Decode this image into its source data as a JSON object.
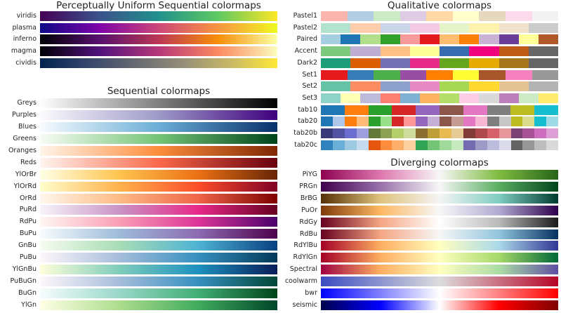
{
  "chart_data": [
    {
      "type": "heatmap",
      "title": "Perceptually Uniform Sequential colormaps",
      "kind": "continuous",
      "colormaps": [
        {
          "name": "viridis",
          "colors": [
            "#440154",
            "#3b528b",
            "#21918c",
            "#5ec962",
            "#fde725"
          ]
        },
        {
          "name": "plasma",
          "colors": [
            "#0d0887",
            "#7e03a8",
            "#cc4778",
            "#f89540",
            "#f0f921"
          ]
        },
        {
          "name": "inferno",
          "colors": [
            "#000004",
            "#57106e",
            "#bc3754",
            "#f98e09",
            "#fcffa4"
          ]
        },
        {
          "name": "magma",
          "colors": [
            "#000004",
            "#51127c",
            "#b73779",
            "#fc8961",
            "#fcfdbf"
          ]
        },
        {
          "name": "cividis",
          "colors": [
            "#00224e",
            "#35456c",
            "#666970",
            "#948e77",
            "#c8b866",
            "#fee838"
          ]
        }
      ]
    },
    {
      "type": "heatmap",
      "title": "Sequential colormaps",
      "kind": "continuous",
      "colormaps": [
        {
          "name": "Greys",
          "colors": [
            "#ffffff",
            "#000000"
          ]
        },
        {
          "name": "Purples",
          "colors": [
            "#fcfbfd",
            "#9e9ac8",
            "#3f007d"
          ]
        },
        {
          "name": "Blues",
          "colors": [
            "#f7fbff",
            "#6baed6",
            "#08306b"
          ]
        },
        {
          "name": "Greens",
          "colors": [
            "#f7fcf5",
            "#74c476",
            "#00441b"
          ]
        },
        {
          "name": "Oranges",
          "colors": [
            "#fff5eb",
            "#fd8d3c",
            "#7f2704"
          ]
        },
        {
          "name": "Reds",
          "colors": [
            "#fff5f0",
            "#fb6a4a",
            "#67000d"
          ]
        },
        {
          "name": "YlOrBr",
          "colors": [
            "#ffffe5",
            "#fec44f",
            "#ec7014",
            "#662506"
          ]
        },
        {
          "name": "YlOrRd",
          "colors": [
            "#ffffcc",
            "#feb24c",
            "#fc4e2a",
            "#800026"
          ]
        },
        {
          "name": "OrRd",
          "colors": [
            "#fff7ec",
            "#fdbb84",
            "#ef6548",
            "#7f0000"
          ]
        },
        {
          "name": "PuRd",
          "colors": [
            "#f7f4f9",
            "#c994c7",
            "#e7298a",
            "#67001f"
          ]
        },
        {
          "name": "RdPu",
          "colors": [
            "#fff7f3",
            "#fa9fb5",
            "#dd3497",
            "#49006a"
          ]
        },
        {
          "name": "BuPu",
          "colors": [
            "#f7fcfd",
            "#9ebcda",
            "#8c6bb1",
            "#4d004b"
          ]
        },
        {
          "name": "GnBu",
          "colors": [
            "#f7fcf0",
            "#a8ddb5",
            "#4eb3d3",
            "#084081"
          ]
        },
        {
          "name": "PuBu",
          "colors": [
            "#fff7fb",
            "#a6bddb",
            "#3690c0",
            "#023858"
          ]
        },
        {
          "name": "YlGnBu",
          "colors": [
            "#ffffd9",
            "#7fcdbb",
            "#1d91c0",
            "#081d58"
          ]
        },
        {
          "name": "PuBuGn",
          "colors": [
            "#fff7fb",
            "#a6bddb",
            "#3690c0",
            "#014636"
          ]
        },
        {
          "name": "BuGn",
          "colors": [
            "#f7fcfd",
            "#99d8c9",
            "#41ae76",
            "#00441b"
          ]
        },
        {
          "name": "YlGn",
          "colors": [
            "#ffffe5",
            "#addd8e",
            "#41ab5d",
            "#004529"
          ]
        }
      ]
    },
    {
      "type": "heatmap",
      "title": "Qualitative colormaps",
      "kind": "discrete",
      "colormaps": [
        {
          "name": "Pastel1",
          "colors": [
            "#fbb4ae",
            "#b3cde3",
            "#ccebc5",
            "#decbe4",
            "#fed9a6",
            "#ffffcc",
            "#e5d8bd",
            "#fddaec",
            "#f2f2f2"
          ]
        },
        {
          "name": "Pastel2",
          "colors": [
            "#b3e2cd",
            "#fdcdac",
            "#cbd5e8",
            "#f4cae4",
            "#e6f5c9",
            "#fff2ae",
            "#f1e2cc",
            "#cccccc"
          ]
        },
        {
          "name": "Paired",
          "colors": [
            "#a6cee3",
            "#1f78b4",
            "#b2df8a",
            "#33a02c",
            "#fb9a99",
            "#e31a1c",
            "#fdbf6f",
            "#ff7f00",
            "#cab2d6",
            "#6a3d9a",
            "#ffff99",
            "#b15928"
          ]
        },
        {
          "name": "Accent",
          "colors": [
            "#7fc97f",
            "#beaed4",
            "#fdc086",
            "#ffff99",
            "#386cb0",
            "#f0027f",
            "#bf5b17",
            "#666666"
          ]
        },
        {
          "name": "Dark2",
          "colors": [
            "#1b9e77",
            "#d95f02",
            "#7570b3",
            "#e7298a",
            "#66a61e",
            "#e6ab02",
            "#a6761d",
            "#666666"
          ]
        },
        {
          "name": "Set1",
          "colors": [
            "#e41a1c",
            "#377eb8",
            "#4daf4a",
            "#984ea3",
            "#ff7f00",
            "#ffff33",
            "#a65628",
            "#f781bf",
            "#999999"
          ]
        },
        {
          "name": "Set2",
          "colors": [
            "#66c2a5",
            "#fc8d62",
            "#8da0cb",
            "#e78ac3",
            "#a6d854",
            "#ffd92f",
            "#e5c494",
            "#b3b3b3"
          ]
        },
        {
          "name": "Set3",
          "colors": [
            "#8dd3c7",
            "#ffffb3",
            "#bebada",
            "#fb8072",
            "#80b1d3",
            "#fdb462",
            "#b3de69",
            "#fccde5",
            "#d9d9d9",
            "#bc80bd",
            "#ccebc5",
            "#ffed6f"
          ]
        },
        {
          "name": "tab10",
          "colors": [
            "#1f77b4",
            "#ff7f0e",
            "#2ca02c",
            "#d62728",
            "#9467bd",
            "#8c564b",
            "#e377c2",
            "#7f7f7f",
            "#bcbd22",
            "#17becf"
          ]
        },
        {
          "name": "tab20",
          "colors": [
            "#1f77b4",
            "#aec7e8",
            "#ff7f0e",
            "#ffbb78",
            "#2ca02c",
            "#98df8a",
            "#d62728",
            "#ff9896",
            "#9467bd",
            "#c5b0d5",
            "#8c564b",
            "#c49c94",
            "#e377c2",
            "#f7b6d2",
            "#7f7f7f",
            "#c7c7c7",
            "#bcbd22",
            "#dbdb8d",
            "#17becf",
            "#9edae5"
          ]
        },
        {
          "name": "tab20b",
          "colors": [
            "#393b79",
            "#5254a3",
            "#6b6ecf",
            "#9c9ede",
            "#637939",
            "#8ca252",
            "#b5cf6b",
            "#cedb9c",
            "#8c6d31",
            "#bd9e39",
            "#e7ba52",
            "#e7cb94",
            "#843c39",
            "#ad494a",
            "#d6616b",
            "#e7969c",
            "#7b4173",
            "#a55194",
            "#ce6dbd",
            "#de9ed6"
          ]
        },
        {
          "name": "tab20c",
          "colors": [
            "#3182bd",
            "#6baed6",
            "#9ecae1",
            "#c6dbef",
            "#e6550d",
            "#fd8d3c",
            "#fdae6b",
            "#fdd0a2",
            "#31a354",
            "#74c476",
            "#a1d99b",
            "#c7e9c0",
            "#756bb1",
            "#9e9ac8",
            "#bcbddc",
            "#dadaeb",
            "#636363",
            "#969696",
            "#bdbdbd",
            "#d9d9d9"
          ]
        }
      ]
    },
    {
      "type": "heatmap",
      "title": "Diverging colormaps",
      "kind": "continuous",
      "colormaps": [
        {
          "name": "PiYG",
          "colors": [
            "#8e0152",
            "#de77ae",
            "#f7f7f7",
            "#7fbc41",
            "#276419"
          ]
        },
        {
          "name": "PRGn",
          "colors": [
            "#40004b",
            "#9970ab",
            "#f7f7f7",
            "#5aae61",
            "#00441b"
          ]
        },
        {
          "name": "BrBG",
          "colors": [
            "#543005",
            "#dfc27d",
            "#f5f5f5",
            "#80cdc1",
            "#003c30"
          ]
        },
        {
          "name": "PuOr",
          "colors": [
            "#7f3b08",
            "#fdb863",
            "#f7f7f7",
            "#b2abd2",
            "#2d004b"
          ]
        },
        {
          "name": "RdGy",
          "colors": [
            "#67001f",
            "#f4a582",
            "#ffffff",
            "#bababa",
            "#1a1a1a"
          ]
        },
        {
          "name": "RdBu",
          "colors": [
            "#67001f",
            "#f4a582",
            "#f7f7f7",
            "#92c5de",
            "#053061"
          ]
        },
        {
          "name": "RdYlBu",
          "colors": [
            "#a50026",
            "#fdae61",
            "#ffffbf",
            "#abd9e9",
            "#313695"
          ]
        },
        {
          "name": "RdYlGn",
          "colors": [
            "#a50026",
            "#fdae61",
            "#ffffbf",
            "#a6d96a",
            "#006837"
          ]
        },
        {
          "name": "Spectral",
          "colors": [
            "#9e0142",
            "#fdae61",
            "#ffffbf",
            "#abdda4",
            "#5e4fa2"
          ]
        },
        {
          "name": "coolwarm",
          "colors": [
            "#3b4cc0",
            "#dddddd",
            "#b40426"
          ]
        },
        {
          "name": "bwr",
          "colors": [
            "#0000ff",
            "#ffffff",
            "#ff0000"
          ]
        },
        {
          "name": "seismic",
          "colors": [
            "#00004c",
            "#0000ff",
            "#ffffff",
            "#ff0000",
            "#7f0000"
          ]
        }
      ]
    }
  ]
}
